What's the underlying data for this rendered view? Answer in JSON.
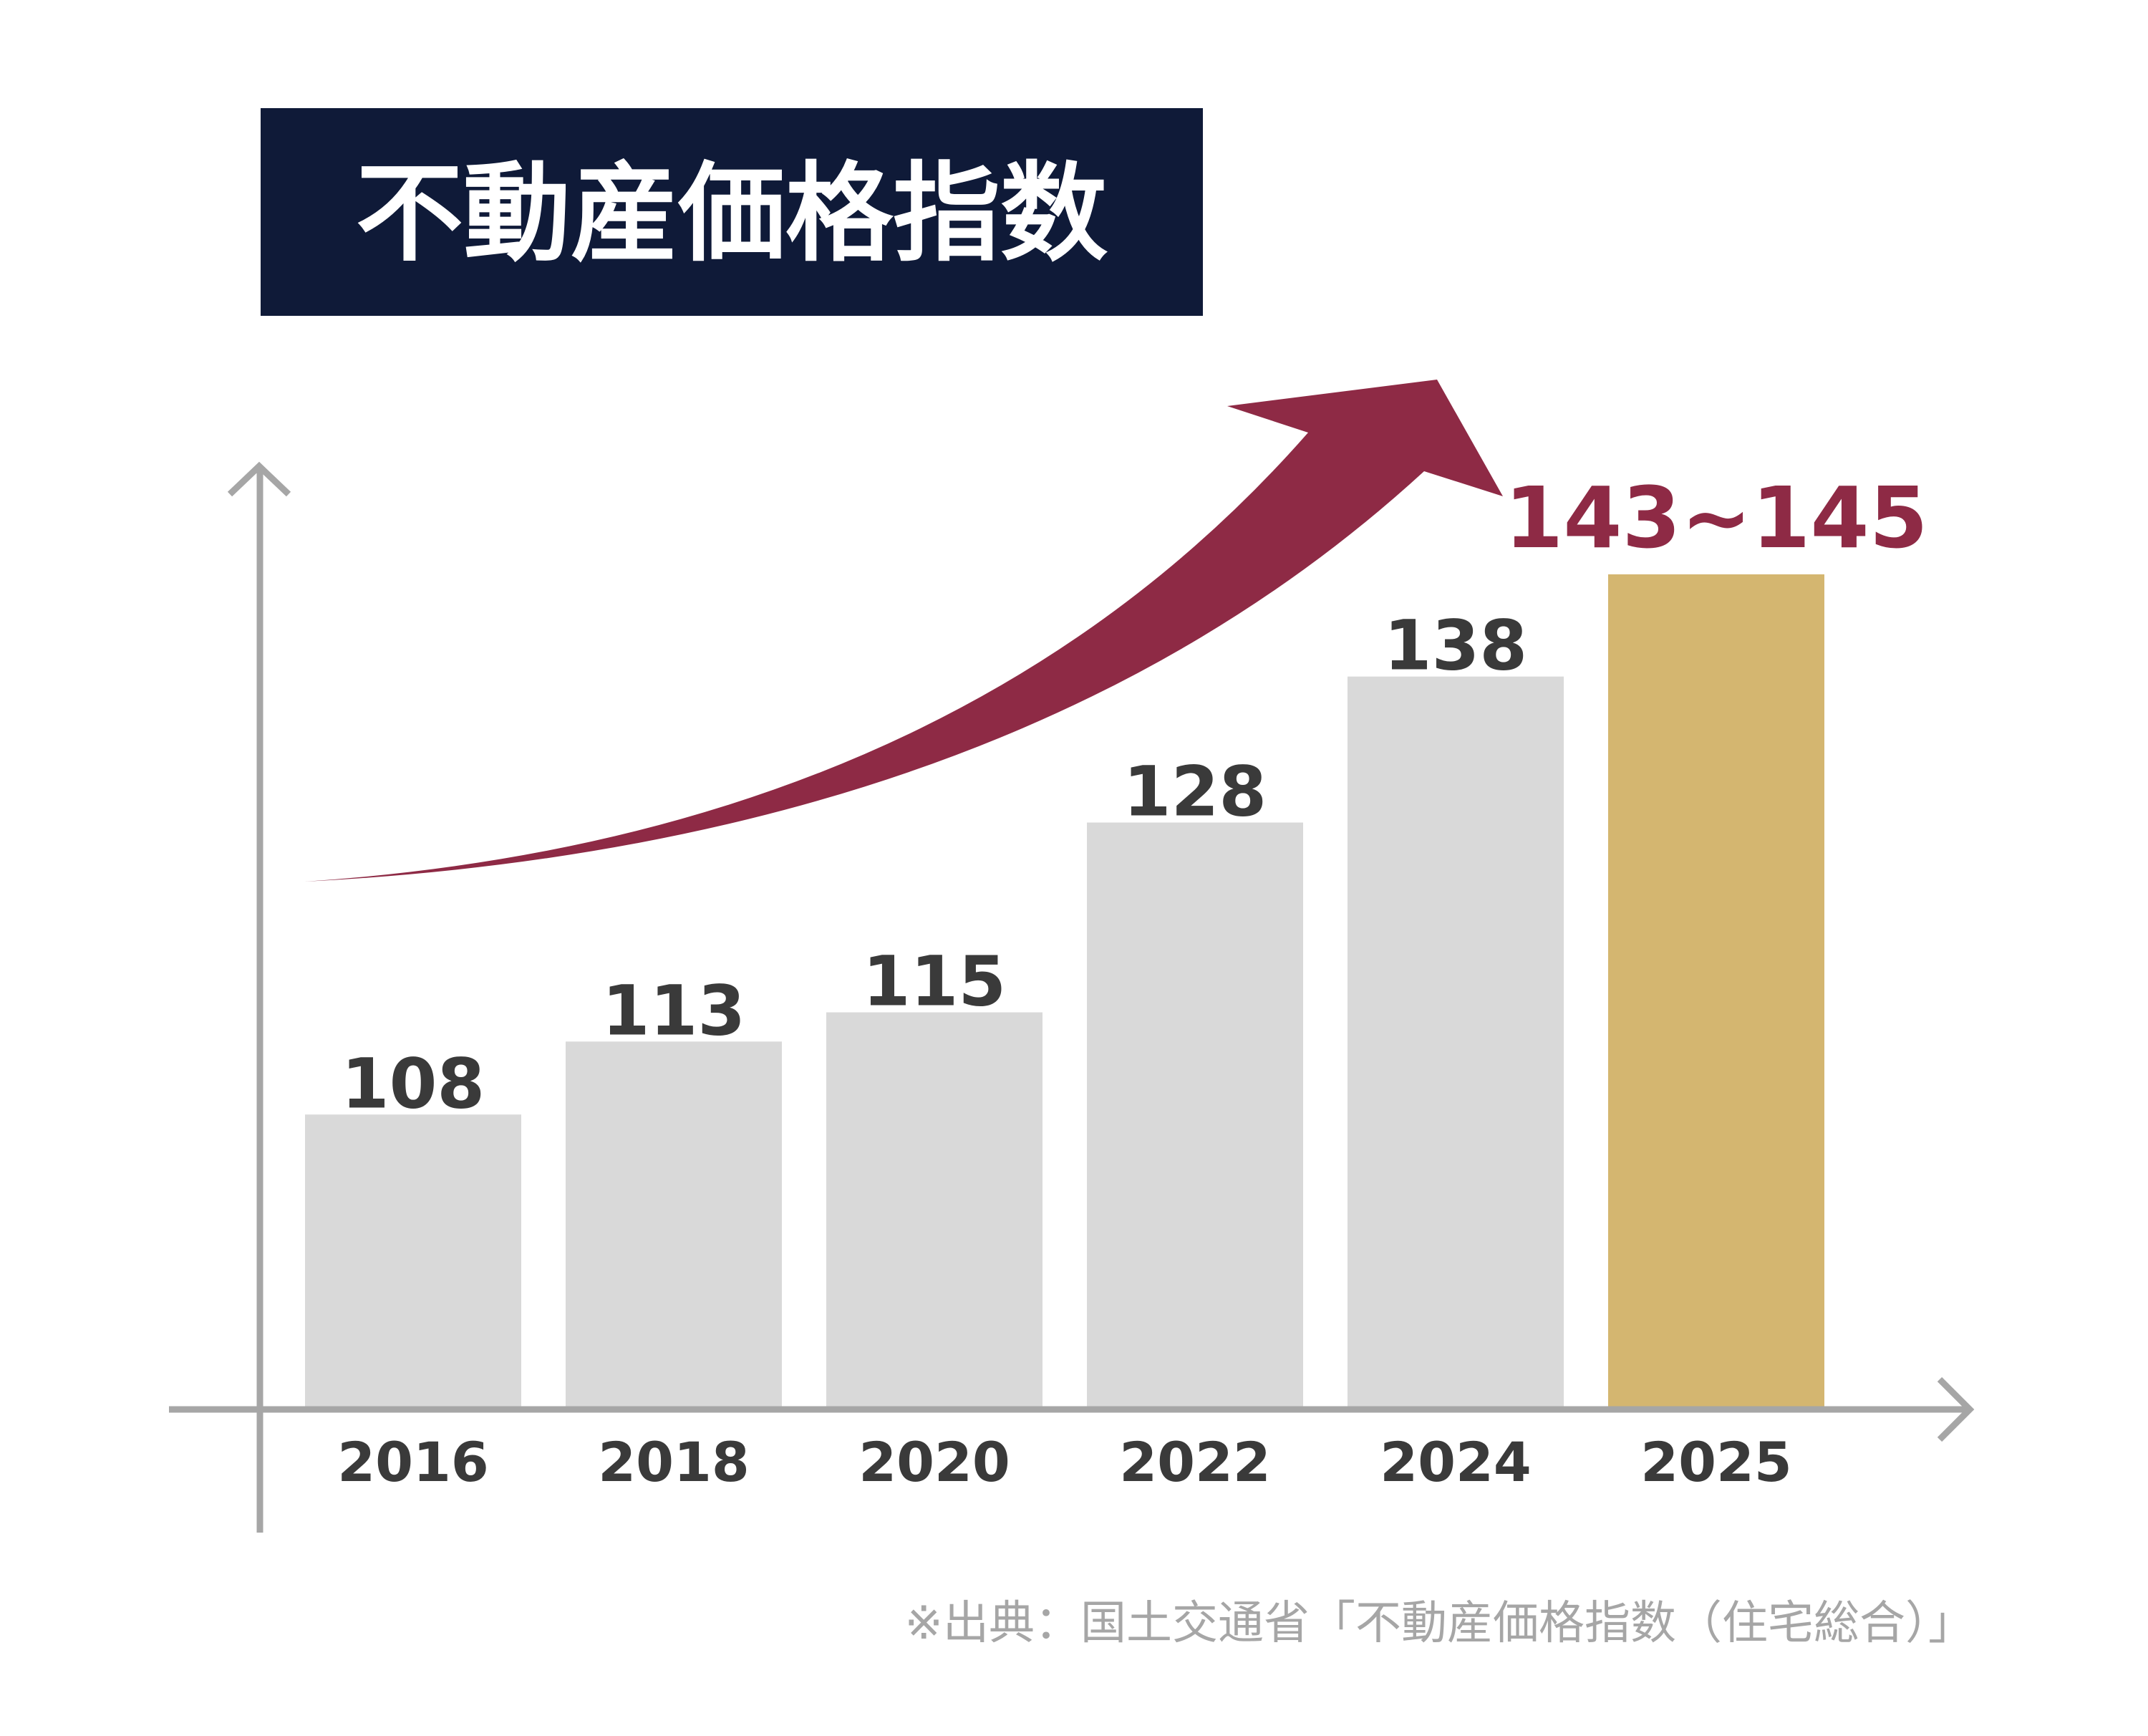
{
  "chart_data": {
    "type": "bar",
    "title": "不動産価格指数",
    "categories": [
      "2016",
      "2018",
      "2020",
      "2022",
      "2024",
      "2025"
    ],
    "values": [
      108,
      113,
      115,
      128,
      138,
      145
    ],
    "value_labels": [
      "108",
      "113",
      "115",
      "128",
      "138",
      "143~145"
    ],
    "highlight_category": "2025",
    "ylim": [
      88,
      150
    ],
    "xlabel": "",
    "ylabel": "",
    "grid": false,
    "legend": "none",
    "source_note": "※出典：国土交通省「不動産価格指数（住宅総合）」",
    "colors": {
      "bar": "#d9d9d9",
      "highlight_bar": "#d4b670",
      "label": "#3a3a3a",
      "highlight_label": "#8e2a45",
      "trend_arrow": "#8e2a45",
      "title_bg": "#0f1a38",
      "title_text": "#ffffff",
      "axis": "#a6a6a6",
      "note": "#a6a6a6"
    }
  }
}
